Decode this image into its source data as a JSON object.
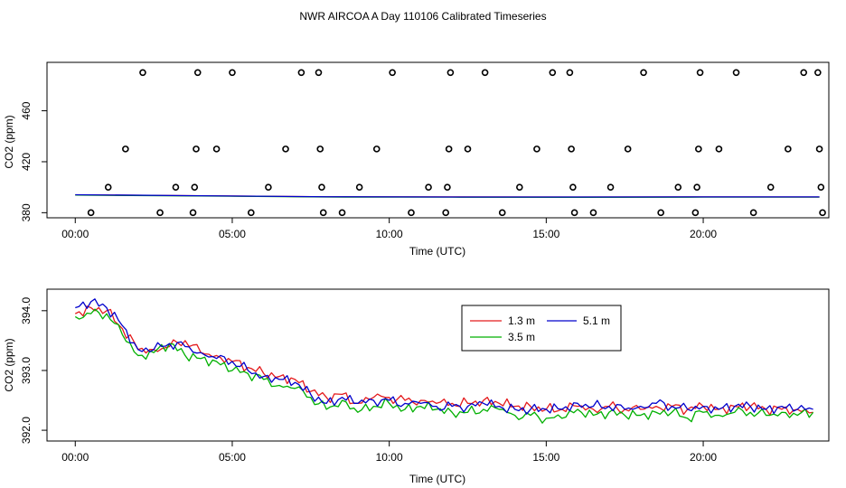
{
  "figure_title": "NWR AIRCOA A  Day 110106  Calibrated Timeseries",
  "colors": {
    "s13": "#e41a1c",
    "s35": "#00b000",
    "s51": "#0000cc",
    "axis": "#000000"
  },
  "chart_data": [
    {
      "type": "scatter",
      "title": "NWR AIRCOA A  Day 110106  Calibrated Timeseries",
      "xlabel": "Time (UTC)",
      "ylabel": "CO2 (ppm)",
      "x_ticks": [
        0,
        5,
        10,
        15,
        20
      ],
      "x_tick_labels": [
        "00:00",
        "05:00",
        "10:00",
        "15:00",
        "20:00"
      ],
      "y_ticks": [
        380,
        420,
        460
      ],
      "y_tick_labels": [
        "380",
        "420",
        "460"
      ],
      "xlim": [
        -0.9,
        24.0
      ],
      "ylim": [
        376,
        498
      ],
      "points": [
        [
          0.5,
          380
        ],
        [
          1.05,
          400
        ],
        [
          1.6,
          430
        ],
        [
          2.15,
          490
        ],
        [
          2.7,
          380
        ],
        [
          3.2,
          400
        ],
        [
          3.75,
          380
        ],
        [
          3.8,
          400
        ],
        [
          3.85,
          430
        ],
        [
          3.9,
          490
        ],
        [
          4.5,
          430
        ],
        [
          5.0,
          490
        ],
        [
          5.6,
          380
        ],
        [
          6.15,
          400
        ],
        [
          6.7,
          430
        ],
        [
          7.2,
          490
        ],
        [
          7.75,
          490
        ],
        [
          7.8,
          430
        ],
        [
          7.85,
          400
        ],
        [
          7.9,
          380
        ],
        [
          8.5,
          380
        ],
        [
          9.05,
          400
        ],
        [
          9.6,
          430
        ],
        [
          10.1,
          490
        ],
        [
          10.7,
          380
        ],
        [
          11.25,
          400
        ],
        [
          11.8,
          380
        ],
        [
          11.85,
          400
        ],
        [
          11.9,
          430
        ],
        [
          11.95,
          490
        ],
        [
          12.5,
          430
        ],
        [
          13.05,
          490
        ],
        [
          13.6,
          380
        ],
        [
          14.15,
          400
        ],
        [
          14.7,
          430
        ],
        [
          15.2,
          490
        ],
        [
          15.75,
          490
        ],
        [
          15.8,
          430
        ],
        [
          15.85,
          400
        ],
        [
          15.9,
          380
        ],
        [
          16.5,
          380
        ],
        [
          17.05,
          400
        ],
        [
          17.6,
          430
        ],
        [
          18.1,
          490
        ],
        [
          18.65,
          380
        ],
        [
          19.2,
          400
        ],
        [
          19.75,
          380
        ],
        [
          19.8,
          400
        ],
        [
          19.85,
          430
        ],
        [
          19.9,
          490
        ],
        [
          20.5,
          430
        ],
        [
          21.05,
          490
        ],
        [
          21.6,
          380
        ],
        [
          22.15,
          400
        ],
        [
          22.7,
          430
        ],
        [
          23.2,
          490
        ],
        [
          23.65,
          490
        ],
        [
          23.7,
          430
        ],
        [
          23.75,
          400
        ],
        [
          23.8,
          380
        ]
      ],
      "series": [
        {
          "name": "1.3 m",
          "x": [
            0.0,
            4.0,
            8.0,
            12.0,
            16.0,
            20.0,
            23.7
          ],
          "values": [
            394.0,
            393.3,
            392.5,
            392.4,
            392.3,
            392.4,
            392.3
          ]
        },
        {
          "name": "3.5 m",
          "x": [
            0.0,
            4.0,
            8.0,
            12.0,
            16.0,
            20.0,
            23.7
          ],
          "values": [
            393.8,
            393.1,
            392.3,
            392.2,
            392.1,
            392.2,
            392.2
          ]
        },
        {
          "name": "5.1 m",
          "x": [
            0.0,
            4.0,
            8.0,
            12.0,
            16.0,
            20.0,
            23.7
          ],
          "values": [
            394.1,
            393.3,
            392.5,
            392.3,
            392.3,
            392.4,
            392.4
          ]
        }
      ]
    },
    {
      "type": "line",
      "title": "",
      "xlabel": "Time (UTC)",
      "ylabel": "CO2 (ppm)",
      "x_ticks": [
        0,
        5,
        10,
        15,
        20
      ],
      "x_tick_labels": [
        "00:00",
        "05:00",
        "10:00",
        "15:00",
        "20:00"
      ],
      "y_ticks": [
        392.0,
        393.0,
        394.0
      ],
      "y_tick_labels": [
        "392.0",
        "393.0",
        "394.0"
      ],
      "xlim": [
        -0.9,
        24.0
      ],
      "ylim": [
        391.82,
        394.36
      ],
      "legend": {
        "position": "top-right",
        "entries": [
          "1.3 m",
          "5.1 m",
          "3.5 m"
        ]
      },
      "series": [
        {
          "name": "1.3 m",
          "color": "#e41a1c",
          "x": [
            0.0,
            0.5,
            1.0,
            1.5,
            2.0,
            2.5,
            3.0,
            3.5,
            4.0,
            4.5,
            5.0,
            5.5,
            6.0,
            6.5,
            7.0,
            7.5,
            8.0,
            8.5,
            9.0,
            9.5,
            10.0,
            10.5,
            11.0,
            11.5,
            12.0,
            12.5,
            13.0,
            13.5,
            14.0,
            14.5,
            15.0,
            15.5,
            16.0,
            16.5,
            17.0,
            17.5,
            18.0,
            18.5,
            19.0,
            19.5,
            20.0,
            20.5,
            21.0,
            21.5,
            22.0,
            22.5,
            23.0,
            23.5
          ],
          "values": [
            393.95,
            394.05,
            394.0,
            393.7,
            393.35,
            393.35,
            393.4,
            393.5,
            393.3,
            393.25,
            393.15,
            393.05,
            392.95,
            392.9,
            392.85,
            392.65,
            392.55,
            392.6,
            392.45,
            392.55,
            392.55,
            392.5,
            392.5,
            392.45,
            392.45,
            392.45,
            392.5,
            392.45,
            392.4,
            392.4,
            392.35,
            392.35,
            392.4,
            392.35,
            392.4,
            392.35,
            392.35,
            392.4,
            392.4,
            392.35,
            392.4,
            392.35,
            392.4,
            392.4,
            392.35,
            392.35,
            392.35,
            392.3
          ]
        },
        {
          "name": "3.5 m",
          "color": "#00b000",
          "x": [
            0.0,
            0.5,
            1.0,
            1.5,
            2.0,
            2.5,
            3.0,
            3.5,
            4.0,
            4.5,
            5.0,
            5.5,
            6.0,
            6.5,
            7.0,
            7.5,
            8.0,
            8.5,
            9.0,
            9.5,
            10.0,
            10.5,
            11.0,
            11.5,
            12.0,
            12.5,
            13.0,
            13.5,
            14.0,
            14.5,
            15.0,
            15.5,
            16.0,
            16.5,
            17.0,
            17.5,
            18.0,
            18.5,
            19.0,
            19.5,
            20.0,
            20.5,
            21.0,
            21.5,
            22.0,
            22.5,
            23.0,
            23.5
          ],
          "values": [
            393.9,
            393.95,
            393.95,
            393.6,
            393.25,
            393.3,
            393.45,
            393.25,
            393.2,
            393.15,
            393.0,
            392.95,
            392.85,
            392.75,
            392.7,
            392.55,
            392.35,
            392.5,
            392.3,
            392.4,
            392.45,
            392.35,
            392.4,
            392.35,
            392.3,
            392.3,
            392.35,
            392.35,
            392.25,
            392.25,
            392.2,
            392.2,
            392.35,
            392.25,
            392.3,
            392.25,
            392.25,
            392.3,
            392.3,
            392.2,
            392.3,
            392.25,
            392.3,
            392.3,
            392.25,
            392.3,
            392.25,
            392.3
          ]
        },
        {
          "name": "5.1 m",
          "color": "#0000cc",
          "x": [
            0.0,
            0.5,
            1.0,
            1.5,
            2.0,
            2.5,
            3.0,
            3.5,
            4.0,
            4.5,
            5.0,
            5.5,
            6.0,
            6.5,
            7.0,
            7.5,
            8.0,
            8.5,
            9.0,
            9.5,
            10.0,
            10.5,
            11.0,
            11.5,
            12.0,
            12.5,
            13.0,
            13.5,
            14.0,
            14.5,
            15.0,
            15.5,
            16.0,
            16.5,
            17.0,
            17.5,
            18.0,
            18.5,
            19.0,
            19.5,
            20.0,
            20.5,
            21.0,
            21.5,
            22.0,
            22.5,
            23.0,
            23.5
          ],
          "values": [
            394.05,
            394.15,
            394.05,
            393.75,
            393.35,
            393.35,
            393.45,
            393.4,
            393.3,
            393.2,
            393.15,
            393.0,
            392.9,
            392.85,
            392.8,
            392.6,
            392.45,
            392.55,
            392.45,
            392.5,
            392.5,
            392.45,
            392.45,
            392.4,
            392.4,
            392.4,
            392.45,
            392.4,
            392.35,
            392.35,
            392.35,
            392.35,
            392.45,
            392.4,
            392.4,
            392.35,
            392.4,
            392.45,
            392.4,
            392.35,
            392.4,
            392.35,
            392.4,
            392.4,
            392.35,
            392.4,
            392.35,
            392.35
          ]
        }
      ]
    }
  ]
}
